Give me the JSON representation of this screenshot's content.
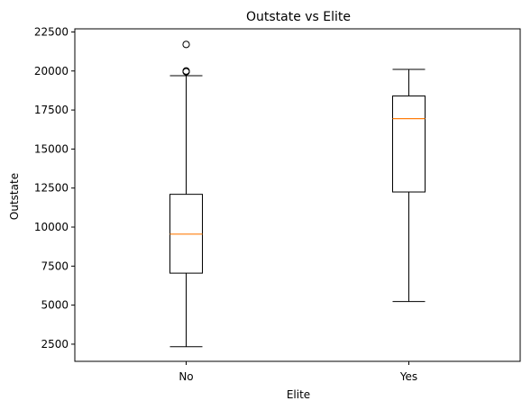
{
  "chart_data": {
    "type": "box",
    "title": "Outstate vs Elite",
    "xlabel": "Elite",
    "ylabel": "Outstate",
    "categories": [
      "No",
      "Yes"
    ],
    "ylim": [
      1400,
      22700
    ],
    "yticks": [
      2500,
      5000,
      7500,
      10000,
      12500,
      15000,
      17500,
      20000,
      22500
    ],
    "grid": false,
    "boxes": [
      {
        "category": "No",
        "whisker_low": 2340,
        "q1": 7050,
        "median": 9550,
        "q3": 12100,
        "whisker_high": 19700,
        "outliers": [
          19950,
          20000,
          21700
        ]
      },
      {
        "category": "Yes",
        "whisker_low": 5230,
        "q1": 12250,
        "median": 16950,
        "q3": 18400,
        "whisker_high": 20100,
        "outliers": []
      }
    ],
    "colors": {
      "box": "#000000",
      "median": "#ff7f0e",
      "background": "#ffffff"
    }
  }
}
